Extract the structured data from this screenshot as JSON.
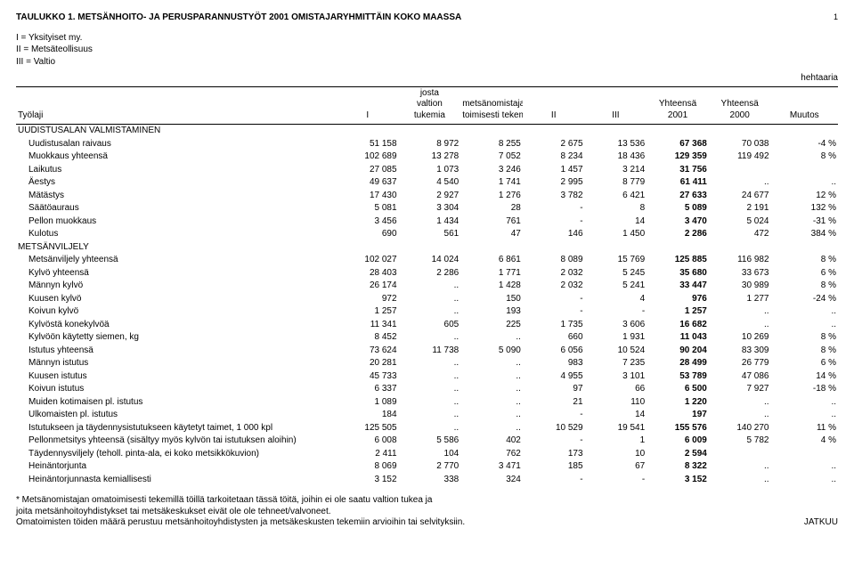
{
  "header": {
    "title": "TAULUKKO 1. METSÄNHOITO- JA PERUSPARANNUSTYÖT 2001 OMISTAJARYHMITTÄIN KOKO MAASSA",
    "page_mark": "1",
    "legend": {
      "l1": "I = Yksityiset my.",
      "l2": "II = Metsäteollisuus",
      "l3": "III = Valtio"
    },
    "unit": "hehtaaria"
  },
  "columns": {
    "c0": "Työlaji",
    "c1": "I",
    "c2": "josta\nvaltion\ntukemia",
    "c3": "\nmetsänomistajan oma-\ntoimisesti tekemiä *",
    "c4": "II",
    "c5": "III",
    "c6": "Yhteensä\n2001",
    "c7": "Yhteensä\n2000",
    "c8": "Muutos"
  },
  "sections": [
    {
      "label": "UUDISTUSALAN VALMISTAMINEN",
      "rows": [
        {
          "label": "Uudistusalan raivaus",
          "indent": 1,
          "cells": [
            "51 158",
            "8 972",
            "8 255",
            "2 675",
            "13 536",
            "67 368",
            "70 038",
            "-4 %"
          ]
        },
        {
          "label": "Muokkaus yhteensä",
          "indent": 1,
          "cells": [
            "102 689",
            "13 278",
            "7 052",
            "8 234",
            "18 436",
            "129 359",
            "119 492",
            "8 %"
          ]
        },
        {
          "label": "Laikutus",
          "indent": 1,
          "cells": [
            "27 085",
            "1 073",
            "3 246",
            "1 457",
            "3 214",
            "31 756",
            "",
            ""
          ]
        },
        {
          "label": "Äestys",
          "indent": 1,
          "cells": [
            "49 637",
            "4 540",
            "1 741",
            "2 995",
            "8 779",
            "61 411",
            "..",
            ".."
          ]
        },
        {
          "label": "Mätästys",
          "indent": 1,
          "cells": [
            "17 430",
            "2 927",
            "1 276",
            "3 782",
            "6 421",
            "27 633",
            "24 677",
            "12 %"
          ]
        },
        {
          "label": "Säätöauraus",
          "indent": 1,
          "cells": [
            "5 081",
            "3 304",
            "28",
            "-",
            "8",
            "5 089",
            "2 191",
            "132 %"
          ]
        },
        {
          "label": "Pellon muokkaus",
          "indent": 1,
          "cells": [
            "3 456",
            "1 434",
            "761",
            "-",
            "14",
            "3 470",
            "5 024",
            "-31 %"
          ]
        },
        {
          "label": "Kulotus",
          "indent": 1,
          "cells": [
            "690",
            "561",
            "47",
            "146",
            "1 450",
            "2 286",
            "472",
            "384 %"
          ]
        }
      ]
    },
    {
      "label": "METSÄNVILJELY",
      "rows": [
        {
          "label": "Metsänviljely yhteensä",
          "indent": 1,
          "cells": [
            "102 027",
            "14 024",
            "6 861",
            "8 089",
            "15 769",
            "125 885",
            "116 982",
            "8 %"
          ]
        },
        {
          "label": "Kylvö yhteensä",
          "indent": 1,
          "cells": [
            "28 403",
            "2 286",
            "1 771",
            "2 032",
            "5 245",
            "35 680",
            "33 673",
            "6 %"
          ]
        },
        {
          "label": "Männyn kylvö",
          "indent": 1,
          "cells": [
            "26 174",
            "..",
            "1 428",
            "2 032",
            "5 241",
            "33 447",
            "30 989",
            "8 %"
          ]
        },
        {
          "label": "Kuusen kylvö",
          "indent": 1,
          "cells": [
            "972",
            "..",
            "150",
            "-",
            "4",
            "976",
            "1 277",
            "-24 %"
          ]
        },
        {
          "label": "Koivun kylvö",
          "indent": 1,
          "cells": [
            "1 257",
            "..",
            "193",
            "-",
            "-",
            "1 257",
            "..",
            ".."
          ]
        },
        {
          "label": "Kylvöstä konekylvöä",
          "indent": 1,
          "cells": [
            "11 341",
            "605",
            "225",
            "1 735",
            "3 606",
            "16 682",
            "..",
            ".."
          ]
        },
        {
          "label": "Kylvöön käytetty siemen, kg",
          "indent": 1,
          "cells": [
            "8 452",
            "..",
            "..",
            "660",
            "1 931",
            "11 043",
            "10 269",
            "8 %"
          ]
        },
        {
          "label": "Istutus yhteensä",
          "indent": 1,
          "cells": [
            "73 624",
            "11 738",
            "5 090",
            "6 056",
            "10 524",
            "90 204",
            "83 309",
            "8 %"
          ]
        },
        {
          "label": "Männyn istutus",
          "indent": 1,
          "cells": [
            "20 281",
            "..",
            "..",
            "983",
            "7 235",
            "28 499",
            "26 779",
            "6 %"
          ]
        },
        {
          "label": "Kuusen istutus",
          "indent": 1,
          "cells": [
            "45 733",
            "..",
            "..",
            "4 955",
            "3 101",
            "53 789",
            "47 086",
            "14 %"
          ]
        },
        {
          "label": "Koivun istutus",
          "indent": 1,
          "cells": [
            "6 337",
            "..",
            "..",
            "97",
            "66",
            "6 500",
            "7 927",
            "-18 %"
          ]
        },
        {
          "label": "Muiden kotimaisen pl.  istutus",
          "indent": 1,
          "cells": [
            "1 089",
            "..",
            "..",
            "21",
            "110",
            "1 220",
            "..",
            ".."
          ]
        },
        {
          "label": "Ulkomaisten pl.  istutus",
          "indent": 1,
          "cells": [
            "184",
            "..",
            "..",
            "-",
            "14",
            "197",
            "..",
            ".."
          ]
        },
        {
          "label": "Istutukseen ja täydennysistutukseen käytetyt taimet, 1 000 kpl",
          "indent": 1,
          "cells": [
            "125 505",
            "..",
            "..",
            "10 529",
            "19 541",
            "155 576",
            "140 270",
            "11 %"
          ]
        },
        {
          "label": "Pellonmetsitys yhteensä (sisältyy myös kylvön tai istutuksen aloihin)",
          "indent": 1,
          "cells": [
            "6 008",
            "5 586",
            "402",
            "-",
            "1",
            "6 009",
            "5 782",
            "4 %"
          ]
        },
        {
          "label": "Täydennysviljely (teholl. pinta-ala, ei koko metsikkökuvion)",
          "indent": 1,
          "cells": [
            "2 411",
            "104",
            "762",
            "173",
            "10",
            "2 594",
            "",
            ""
          ]
        },
        {
          "label": "Heinäntorjunta",
          "indent": 1,
          "cells": [
            "8 069",
            "2 770",
            "3 471",
            "185",
            "67",
            "8 322",
            "..",
            ".."
          ]
        },
        {
          "label": "Heinäntorjunnasta kemiallisesti",
          "indent": 1,
          "cells": [
            "3 152",
            "338",
            "324",
            "-",
            "-",
            "3 152",
            "..",
            ".."
          ]
        }
      ]
    }
  ],
  "footnotes": {
    "f1": "* Metsänomistajan omatoimisesti tekemillä töillä tarkoitetaan tässä töitä, joihin ei ole saatu valtion tukea ja",
    "f2": "joita metsänhoitoyhdistykset tai metsäkeskukset eivät ole ole tehneet/valvoneet.",
    "f3": "Omatoimisten töiden määrä perustuu metsänhoitoyhdistysten ja metsäkeskusten tekemiin arvioihin tai selvityksiin.",
    "jatkuu": "JATKUU"
  }
}
